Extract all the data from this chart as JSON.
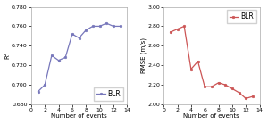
{
  "left": {
    "x": [
      1,
      2,
      3,
      4,
      5,
      6,
      7,
      8,
      9,
      10,
      11,
      12,
      13
    ],
    "y": [
      0.693,
      0.7,
      0.73,
      0.725,
      0.728,
      0.752,
      0.748,
      0.756,
      0.76,
      0.76,
      0.763,
      0.76,
      0.76
    ],
    "color": "#7777bb",
    "ylabel": "R²",
    "ylim": [
      0.68,
      0.78
    ],
    "yticks": [
      0.68,
      0.7,
      0.72,
      0.74,
      0.76,
      0.78
    ],
    "xlabel": "Number of events",
    "xlim": [
      0,
      14
    ],
    "xticks": [
      0,
      2,
      4,
      6,
      8,
      10,
      12,
      14
    ],
    "label": "BLR",
    "legend_loc": "lower right"
  },
  "right": {
    "x": [
      1,
      2,
      3,
      4,
      5,
      6,
      7,
      8,
      9,
      10,
      11,
      12,
      13
    ],
    "y": [
      2.74,
      2.77,
      2.8,
      2.36,
      2.44,
      2.18,
      2.18,
      2.22,
      2.2,
      2.16,
      2.12,
      2.06,
      2.08
    ],
    "color": "#cc5555",
    "ylabel": "RMSE (m/s)",
    "ylim": [
      2.0,
      3.0
    ],
    "yticks": [
      2.0,
      2.2,
      2.4,
      2.6,
      2.8,
      3.0
    ],
    "xlabel": "Number of events",
    "xlim": [
      0,
      14
    ],
    "xticks": [
      0,
      2,
      4,
      6,
      8,
      10,
      12,
      14
    ],
    "label": "BLR",
    "legend_loc": "upper right"
  },
  "figsize": [
    3.0,
    1.39
  ],
  "dpi": 100,
  "marker": "o",
  "markersize": 1.8,
  "linewidth": 0.9,
  "legend_fontsize": 5.5,
  "axis_label_fontsize": 5.0,
  "tick_fontsize": 4.5,
  "background_color": "#ffffff",
  "spine_color": "#aaaaaa"
}
